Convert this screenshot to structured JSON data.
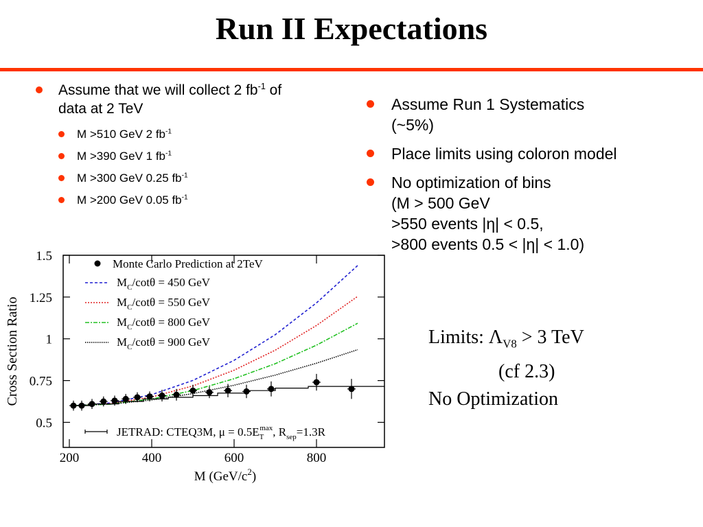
{
  "slide": {
    "title": "Run II Expectations",
    "accent_color": "#ff3300"
  },
  "left_bullets": {
    "main_text": "Assume that we will collect 2 fb",
    "main_sup": "-1",
    "main_tail": " of",
    "main_line2": "data at 2 TeV",
    "items": [
      {
        "text": "M >510 GeV 2 fb",
        "sup": "-1"
      },
      {
        "text": "M >390 GeV 1 fb",
        "sup": "-1"
      },
      {
        "text": "M >300 GeV 0.25 fb",
        "sup": "-1"
      },
      {
        "text": "M >200 GeV 0.05 fb",
        "sup": "-1"
      }
    ]
  },
  "right_bullets": {
    "item1_line1": "Assume Run 1 Systematics",
    "item1_line2": "(~5%)",
    "item2": "Place limits using coloron model",
    "item3_line1": "No optimization of bins",
    "item3_line2": "(M > 500 GeV",
    "item3_line3": ">550 events |η| < 0.5,",
    "item3_line4": ">800 events 0.5 < |η| < 1.0)"
  },
  "limits": {
    "line1_pre": "Limits: Λ",
    "line1_sub": "V8",
    "line1_post": " > 3 TeV",
    "line2": "(cf 2.3)",
    "line3": "No Optimization"
  },
  "chart_data": {
    "type": "line",
    "xlabel": "M (GeV/c",
    "xlabel_sup": "2",
    "xlabel_close": ")",
    "ylabel": "Cross Section Ratio",
    "xlim": [
      185,
      965
    ],
    "ylim": [
      0.35,
      1.5
    ],
    "x_ticks": [
      200,
      400,
      600,
      800
    ],
    "x_tick_labels": [
      "200",
      "400",
      "600",
      "800"
    ],
    "y_ticks": [
      0.5,
      0.75,
      1,
      1.25,
      1.5
    ],
    "y_tick_labels": [
      "0.5",
      "0.75",
      "1",
      "1.25",
      "1.5"
    ],
    "grid": false,
    "legend_position": "top-left",
    "points": {
      "name": "Monte Carlo Prediction at 2TeV",
      "x": [
        210,
        230,
        255,
        283,
        310,
        337,
        365,
        395,
        425,
        460,
        500,
        540,
        585,
        630,
        690,
        800,
        885
      ],
      "y": [
        0.6,
        0.6,
        0.61,
        0.625,
        0.63,
        0.64,
        0.65,
        0.655,
        0.66,
        0.665,
        0.69,
        0.68,
        0.69,
        0.685,
        0.7,
        0.74,
        0.7
      ],
      "yerr": [
        0.03,
        0.03,
        0.03,
        0.03,
        0.03,
        0.03,
        0.03,
        0.03,
        0.035,
        0.035,
        0.035,
        0.035,
        0.04,
        0.04,
        0.045,
        0.05,
        0.06
      ]
    },
    "series": [
      {
        "name_pre": "M",
        "name_sub": "C",
        "name_post": "/cotθ = 450 GeV",
        "color": "#1f1fd0",
        "dash": "4,3",
        "x": [
          210,
          300,
          400,
          500,
          600,
          700,
          800,
          900
        ],
        "y": [
          0.6,
          0.616,
          0.666,
          0.751,
          0.871,
          1.025,
          1.215,
          1.439
        ]
      },
      {
        "name_pre": "M",
        "name_sub": "C",
        "name_post": "/cotθ = 550 GeV",
        "color": "#e02020",
        "dash": "2,2",
        "x": [
          210,
          300,
          400,
          500,
          600,
          700,
          800,
          900
        ],
        "y": [
          0.6,
          0.612,
          0.652,
          0.718,
          0.812,
          0.932,
          1.08,
          1.254
        ]
      },
      {
        "name_pre": "M",
        "name_sub": "C",
        "name_post": "/cotθ = 800 GeV",
        "color": "#20c020",
        "dash": "6,2,2,2",
        "x": [
          210,
          300,
          400,
          500,
          600,
          700,
          800,
          900
        ],
        "y": [
          0.6,
          0.609,
          0.64,
          0.69,
          0.761,
          0.851,
          0.962,
          1.093
        ]
      },
      {
        "name_pre": "M",
        "name_sub": "C",
        "name_post": "/cotθ = 900 GeV",
        "color": "#000000",
        "dash": "1.5,1.5",
        "x": [
          210,
          300,
          400,
          500,
          600,
          700,
          800,
          900
        ],
        "y": [
          0.6,
          0.609,
          0.634,
          0.672,
          0.722,
          0.783,
          0.854,
          0.935
        ]
      }
    ],
    "theory": {
      "label_pre": "JETRAD: CTEQ3M, μ = 0.5E",
      "label_sub": "T",
      "label_sup": "max",
      "label_mid": ", R",
      "label_sub2": "sep",
      "label_post": "=1.3R",
      "steps": [
        [
          210,
          0.6
        ],
        [
          260,
          0.61
        ],
        [
          320,
          0.625
        ],
        [
          380,
          0.64
        ],
        [
          440,
          0.65
        ],
        [
          500,
          0.66
        ],
        [
          560,
          0.675
        ],
        [
          630,
          0.69
        ],
        [
          700,
          0.705
        ],
        [
          780,
          0.715
        ],
        [
          965,
          0.715
        ]
      ]
    }
  }
}
